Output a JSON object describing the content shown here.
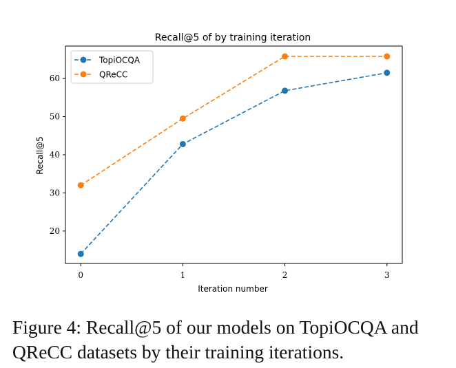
{
  "chart_data": {
    "type": "line",
    "title": "Recall@5 of by training iteration",
    "xlabel": "Iteration number",
    "ylabel": "Recall@5",
    "x": [
      0,
      1,
      2,
      3
    ],
    "xticks": [
      "0",
      "1",
      "2",
      "3"
    ],
    "yticks": [
      20,
      30,
      40,
      50,
      60
    ],
    "ytick_labels": [
      "20",
      "30",
      "40",
      "50",
      "60"
    ],
    "xlim": [
      -0.15,
      3.15
    ],
    "ylim": [
      11.5,
      68.5
    ],
    "legend_position": "upper-left",
    "series": [
      {
        "name": "TopiOCQA",
        "values": [
          14.0,
          42.8,
          56.8,
          61.5
        ],
        "color": "#1f77b4",
        "linestyle": "dashed",
        "marker": "circle"
      },
      {
        "name": "QReCC",
        "values": [
          32.0,
          49.5,
          65.8,
          65.8
        ],
        "color": "#ff7f0e",
        "linestyle": "dashed",
        "marker": "circle"
      }
    ]
  },
  "caption": {
    "text": "Figure 4: Recall@5 of our models on TopiOCQA and QReCC datasets by their training iterations."
  }
}
